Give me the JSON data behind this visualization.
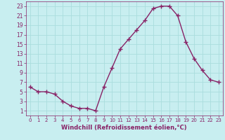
{
  "x": [
    0,
    1,
    2,
    3,
    4,
    5,
    6,
    7,
    8,
    9,
    10,
    11,
    12,
    13,
    14,
    15,
    16,
    17,
    18,
    19,
    20,
    21,
    22,
    23
  ],
  "y": [
    6,
    5,
    5,
    4.5,
    3,
    2,
    1.5,
    1.5,
    1,
    6,
    10,
    14,
    16,
    18,
    20,
    22.5,
    23,
    23,
    21,
    15.5,
    12,
    9.5,
    7.5,
    7
  ],
  "line_color": "#882266",
  "marker": "+",
  "marker_size": 4,
  "marker_color": "#882266",
  "bg_color": "#c8eef0",
  "grid_color": "#aadddd",
  "xlabel": "Windchill (Refroidissement éolien,°C)",
  "xlabel_color": "#882266",
  "tick_color": "#882266",
  "ylim": [
    0,
    24
  ],
  "xlim": [
    -0.5,
    23.5
  ],
  "yticks": [
    1,
    3,
    5,
    7,
    9,
    11,
    13,
    15,
    17,
    19,
    21,
    23
  ],
  "xticks": [
    0,
    1,
    2,
    3,
    4,
    5,
    6,
    7,
    8,
    9,
    10,
    11,
    12,
    13,
    14,
    15,
    16,
    17,
    18,
    19,
    20,
    21,
    22,
    23
  ]
}
